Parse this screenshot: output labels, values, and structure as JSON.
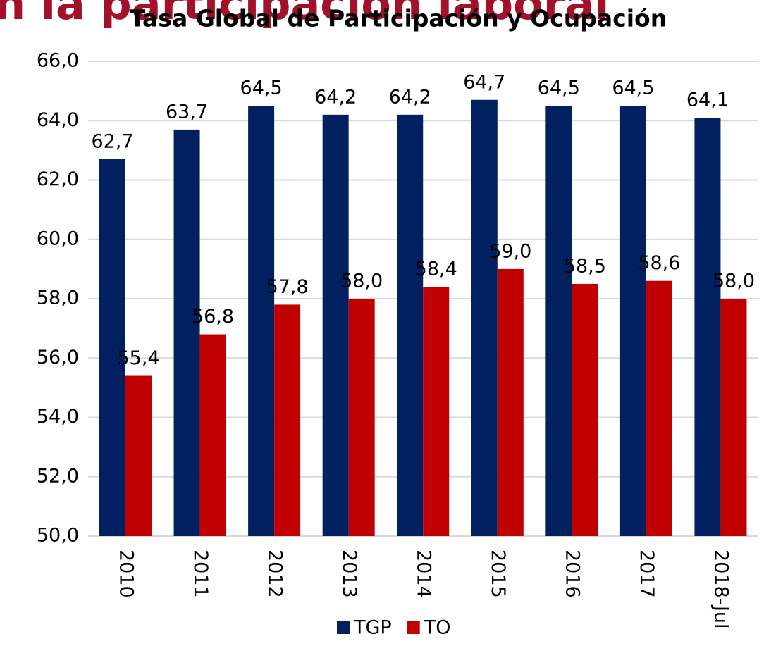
{
  "background_text": "n la participación laboral",
  "chart_data": {
    "type": "bar",
    "title": "Tasa Global de Participación y Ocupación",
    "categories": [
      "2010",
      "2011",
      "2012",
      "2013",
      "2014",
      "2015",
      "2016",
      "2017",
      "2018-Jul"
    ],
    "series": [
      {
        "name": "TGP",
        "color": "#002060",
        "values": [
          62.7,
          63.7,
          64.5,
          64.2,
          64.2,
          64.7,
          64.5,
          64.5,
          64.1
        ],
        "value_labels": [
          "62,7",
          "63,7",
          "64,5",
          "64,2",
          "64,2",
          "64,7",
          "64,5",
          "64,5",
          "64,1"
        ]
      },
      {
        "name": "TO",
        "color": "#c00000",
        "values": [
          55.4,
          56.8,
          57.8,
          58.0,
          58.4,
          59.0,
          58.5,
          58.6,
          58.0
        ],
        "value_labels": [
          "55,4",
          "56,8",
          "57,8",
          "58,0",
          "58,4",
          "59,0",
          "58,5",
          "58,6",
          "58,0"
        ]
      }
    ],
    "ylim": [
      50,
      66
    ],
    "yticks": [
      {
        "value": 50,
        "label": "50,0"
      },
      {
        "value": 52,
        "label": "52,0"
      },
      {
        "value": 54,
        "label": "54,0"
      },
      {
        "value": 56,
        "label": "56,0"
      },
      {
        "value": 58,
        "label": "58,0"
      },
      {
        "value": 60,
        "label": "60,0"
      },
      {
        "value": 62,
        "label": "62,0"
      },
      {
        "value": 64,
        "label": "64,0"
      },
      {
        "value": 66,
        "label": "66,0"
      }
    ],
    "grid": true,
    "legend": "bottom"
  }
}
